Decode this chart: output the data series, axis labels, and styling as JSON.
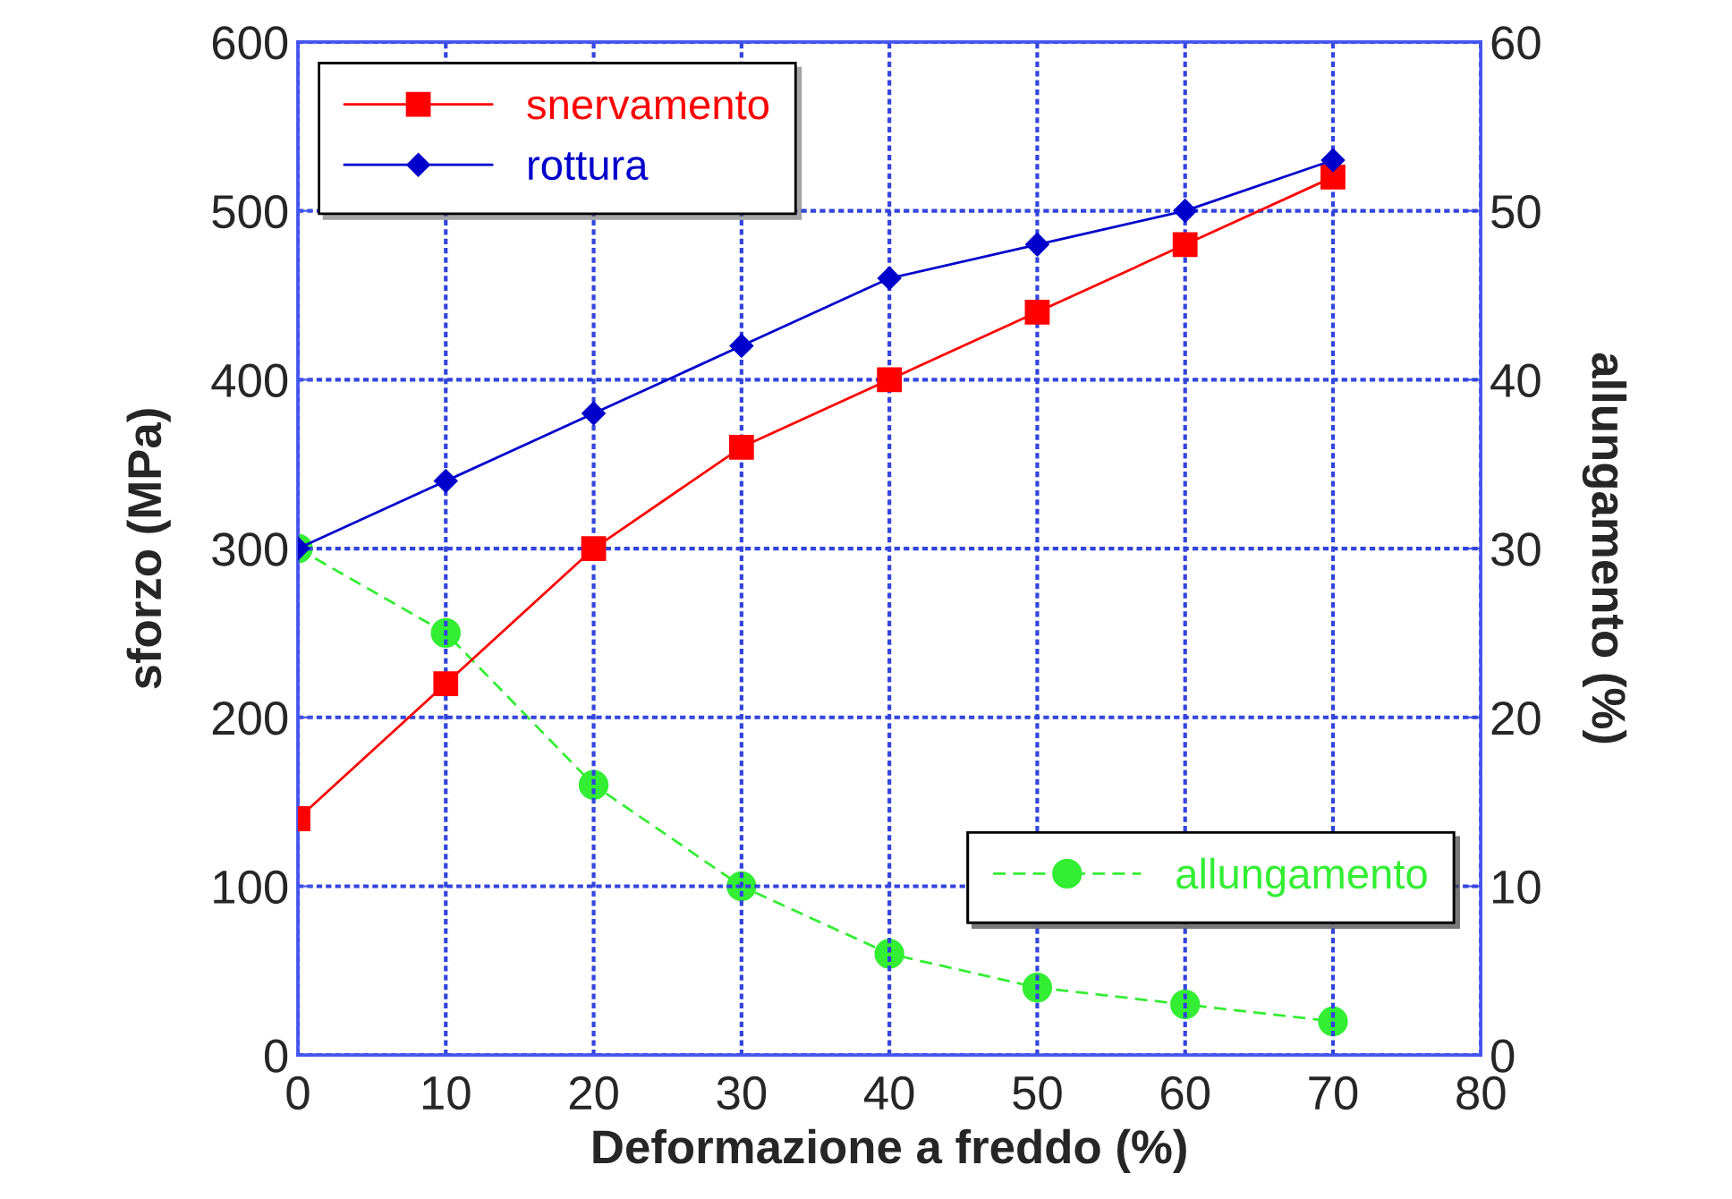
{
  "chart_data": {
    "type": "line",
    "xlabel": "Deformazione a freddo (%)",
    "ylabel": "sforzo (MPa)",
    "y2label": "allungamento (%)",
    "x": [
      0,
      10,
      20,
      30,
      40,
      50,
      60,
      70
    ],
    "series": [
      {
        "name": "snervamento",
        "color": "#ff0000",
        "marker": "square",
        "line_style": "solid",
        "values": [
          140,
          220,
          300,
          360,
          400,
          440,
          480,
          520
        ]
      },
      {
        "name": "rottura",
        "color": "#0000cc",
        "marker": "diamond",
        "line_style": "solid",
        "values": [
          300,
          340,
          380,
          420,
          460,
          480,
          500,
          530
        ]
      },
      {
        "name": "allungamento",
        "color": "#33ee33",
        "marker": "circle",
        "line_style": "dashed",
        "axis": "y2",
        "values": [
          30,
          25,
          16,
          10,
          6,
          4,
          3,
          2
        ]
      }
    ],
    "xlim": [
      0,
      80
    ],
    "xticks": [
      0,
      10,
      20,
      30,
      40,
      50,
      60,
      70,
      80
    ],
    "ylim": [
      0,
      600
    ],
    "yticks": [
      0,
      100,
      200,
      300,
      400,
      500,
      600
    ],
    "y2lim": [
      0,
      60
    ],
    "y2ticks": [
      0,
      10,
      20,
      30,
      40,
      50,
      60
    ],
    "grid": true,
    "legend": "top left"
  }
}
